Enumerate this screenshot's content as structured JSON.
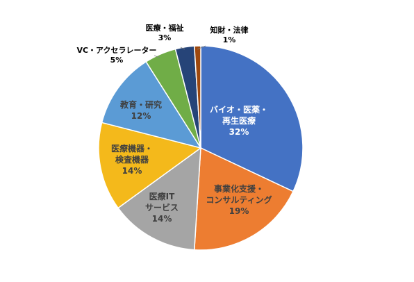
{
  "chart_data": {
    "type": "pie",
    "title": "",
    "slices": [
      {
        "name": "バイオ・医薬・再生医療",
        "lines": [
          "バイオ・医薬・",
          "再生医療"
        ],
        "value": 32,
        "label": "32%",
        "color": "#4472c4",
        "text_color": "#ffffff"
      },
      {
        "name": "事業化支援・コンサルティング",
        "lines": [
          "事業化支援・",
          "コンサルティング"
        ],
        "value": 19,
        "label": "19%",
        "color": "#ed7d31",
        "text_color": "#404040"
      },
      {
        "name": "医療ITサービス",
        "lines": [
          "医療IT",
          "サービス"
        ],
        "value": 14,
        "label": "14%",
        "color": "#a5a5a5",
        "text_color": "#404040"
      },
      {
        "name": "医療機器・検査機器",
        "lines": [
          "医療機器・",
          "検査機器"
        ],
        "value": 14,
        "label": "14%",
        "color": "#f4b91b",
        "text_color": "#404040"
      },
      {
        "name": "教育・研究",
        "lines": [
          "教育・研究"
        ],
        "value": 12,
        "label": "12%",
        "color": "#5b9bd5",
        "text_color": "#404040"
      },
      {
        "name": "VC・アクセラレーター",
        "lines": [
          "VC・アクセラレーター"
        ],
        "value": 5,
        "label": "5%",
        "color": "#70ad47",
        "text_color": "#000000"
      },
      {
        "name": "医療・福祉",
        "lines": [
          "医療・福祉"
        ],
        "value": 3,
        "label": "3%",
        "color": "#264478",
        "text_color": "#000000"
      },
      {
        "name": "知財・法律",
        "lines": [
          "知財・法律"
        ],
        "value": 1,
        "label": "1%",
        "color": "#9e480e",
        "text_color": "#000000"
      }
    ],
    "legend": "none",
    "data_labels": "category name and percentage"
  }
}
